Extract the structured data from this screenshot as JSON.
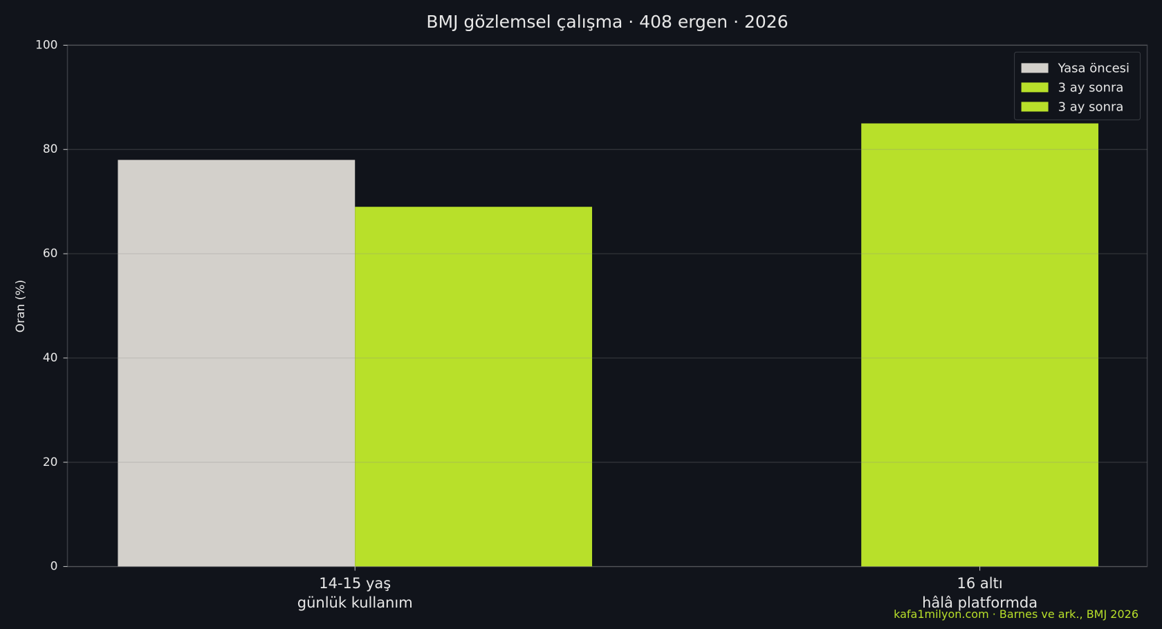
{
  "chart_data": {
    "type": "bar",
    "title": "BMJ gözlemsel çalışma · 408 ergen · 2026",
    "y_label": "Oran (%)",
    "categories": [
      "14-15 yaş\ngünlük kullanım",
      "16 altı\nhâlâ platformda"
    ],
    "series": [
      {
        "name": "Yasa öncesi",
        "color": "#d3d0cb",
        "values": [
          78,
          null
        ]
      },
      {
        "name": "3 ay sonra",
        "color": "#b8e02a",
        "values": [
          69,
          null
        ]
      },
      {
        "name": "3 ay sonra",
        "color": "#b8e02a",
        "values": [
          null,
          85
        ]
      }
    ],
    "ylim": [
      0,
      100
    ],
    "yticks": [
      0,
      20,
      40,
      60,
      80,
      100
    ],
    "grid": true,
    "legend": "upper right",
    "footer": "kafa1milyon.com · Barnes ve ark., BMJ 2026"
  }
}
